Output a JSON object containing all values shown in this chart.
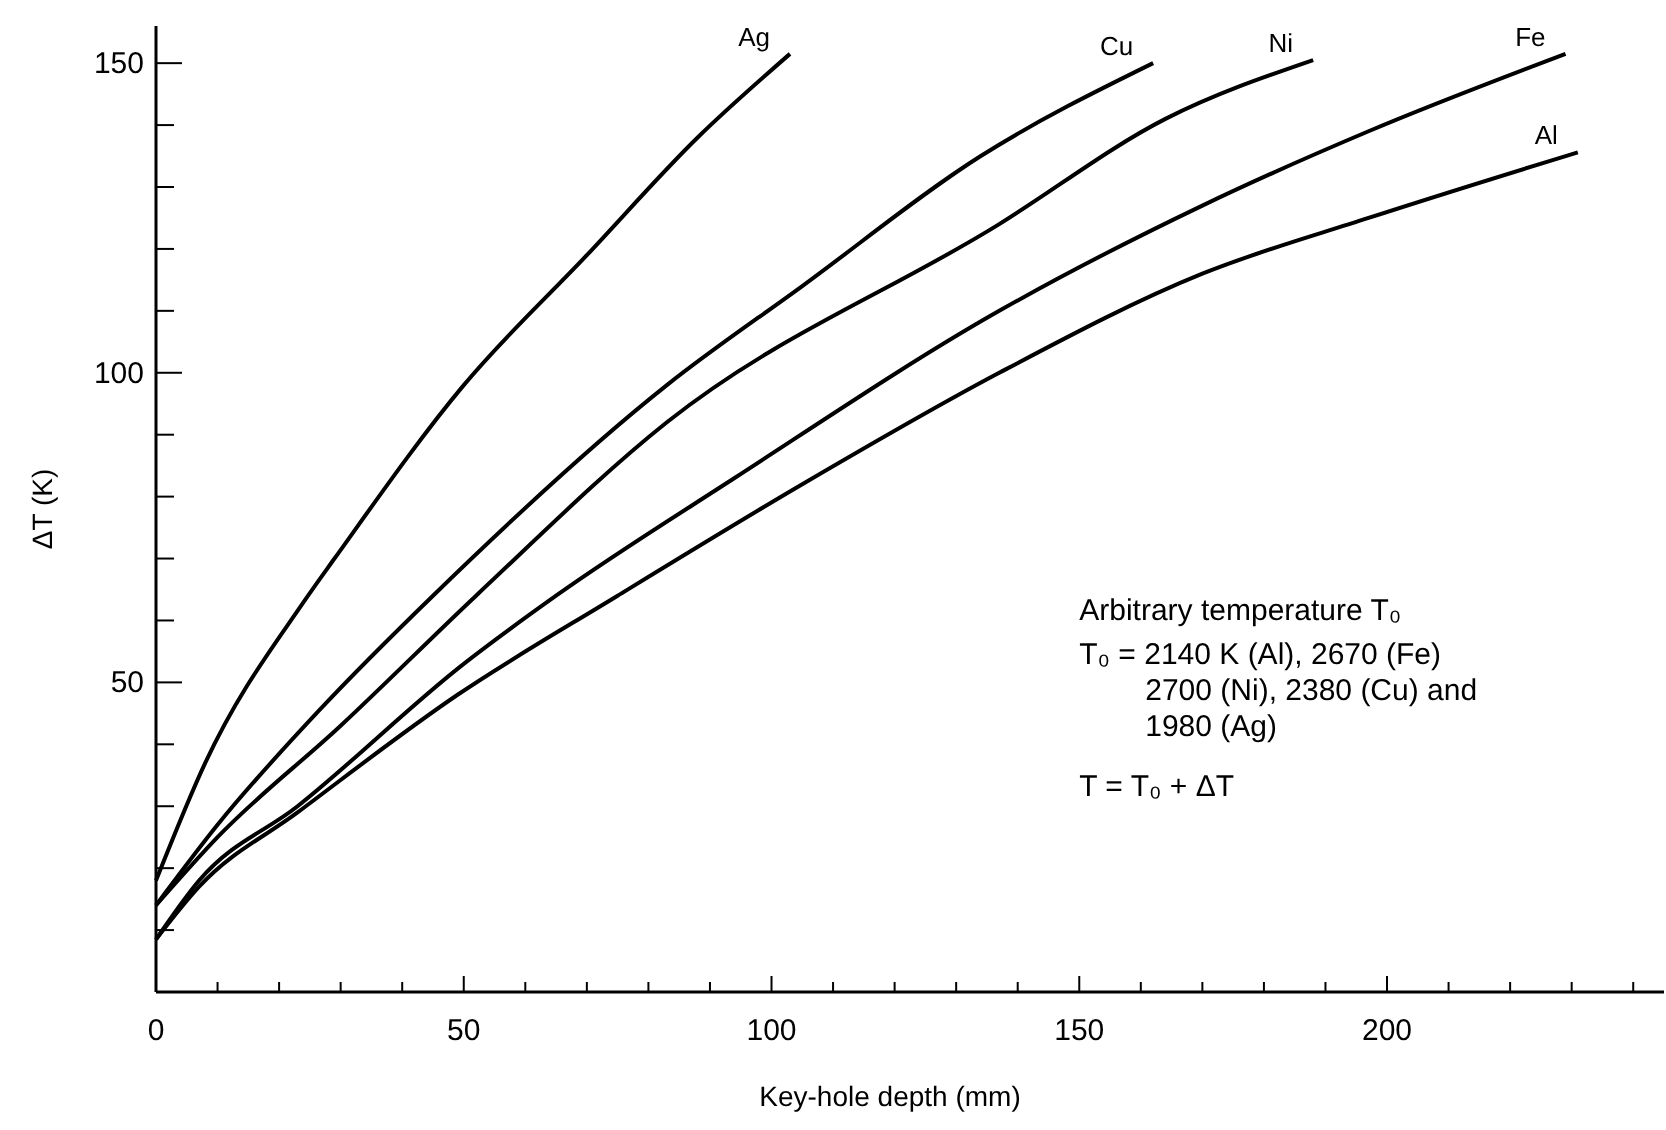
{
  "chart_data": {
    "type": "line",
    "xlabel": "Key-hole depth (mm)",
    "ylabel": "ΔT (K)",
    "xlim": [
      0,
      245
    ],
    "ylim": [
      0,
      156
    ],
    "xticks": [
      0,
      {
        "value": 10,
        "label": null
      },
      {
        "value": 20,
        "label": null
      },
      {
        "value": 30,
        "label": null
      },
      {
        "value": 40,
        "label": null
      },
      50,
      {
        "value": 60,
        "label": null
      },
      {
        "value": 70,
        "label": null
      },
      {
        "value": 80,
        "label": null
      },
      {
        "value": 90,
        "label": null
      },
      100,
      {
        "value": 110,
        "label": null
      },
      {
        "value": 120,
        "label": null
      },
      {
        "value": 130,
        "label": null
      },
      {
        "value": 140,
        "label": null
      },
      150,
      {
        "value": 160,
        "label": null
      },
      {
        "value": 170,
        "label": null
      },
      {
        "value": 180,
        "label": null
      },
      {
        "value": 190,
        "label": null
      },
      200,
      {
        "value": 210,
        "label": null
      },
      {
        "value": 220,
        "label": null
      },
      {
        "value": 230,
        "label": null
      },
      {
        "value": 240,
        "label": null
      }
    ],
    "yticks": [
      {
        "value": 10,
        "label": null
      },
      {
        "value": 20,
        "label": null
      },
      {
        "value": 30,
        "label": null
      },
      {
        "value": 40,
        "label": null
      },
      50,
      {
        "value": 60,
        "label": null
      },
      {
        "value": 70,
        "label": null
      },
      {
        "value": 80,
        "label": null
      },
      {
        "value": 90,
        "label": null
      },
      100,
      {
        "value": 110,
        "label": null
      },
      {
        "value": 120,
        "label": null
      },
      {
        "value": 130,
        "label": null
      },
      {
        "value": 140,
        "label": null
      },
      150
    ],
    "grid": false,
    "marker": "none",
    "line_style": "solid",
    "series": [
      {
        "name": "Ag",
        "color": "#000000",
        "x": [
          0,
          8,
          24,
          29,
          50,
          70,
          88,
          103
        ],
        "values": [
          18,
          37,
          63,
          70,
          98,
          119,
          138,
          151.5
        ]
      },
      {
        "name": "Cu",
        "color": "#000000",
        "x": [
          0,
          10,
          27,
          45,
          83,
          105,
          134,
          162
        ],
        "values": [
          14,
          27,
          46,
          64,
          98,
          114,
          135,
          150
        ]
      },
      {
        "name": "Ni",
        "color": "#000000",
        "x": [
          0,
          10,
          30,
          52,
          83,
          137,
          164,
          188
        ],
        "values": [
          14,
          25,
          43,
          64,
          92,
          124,
          141,
          150.5
        ]
      },
      {
        "name": "Fe",
        "color": "#000000",
        "x": [
          0,
          7,
          23,
          50,
          65,
          94,
          137,
          170,
          197,
          229
        ],
        "values": [
          8.5,
          18,
          30,
          53,
          64,
          83,
          110,
          127,
          139,
          151.5
        ]
      },
      {
        "name": "Al",
        "color": "#000000",
        "x": [
          0,
          7,
          23,
          49,
          75,
          105,
          137,
          170,
          197,
          231
        ],
        "values": [
          8.5,
          17,
          29,
          48,
          64,
          82,
          100,
          116,
          125,
          135.6
        ]
      }
    ],
    "annotations": [
      "Arbitrary temperature T₀",
      "T₀ = 2140 K (Al), 2670 (Fe)",
      "2700 (Ni), 2380 (Cu) and",
      "1980 (Ag)",
      "T = T₀ + ΔT"
    ]
  }
}
